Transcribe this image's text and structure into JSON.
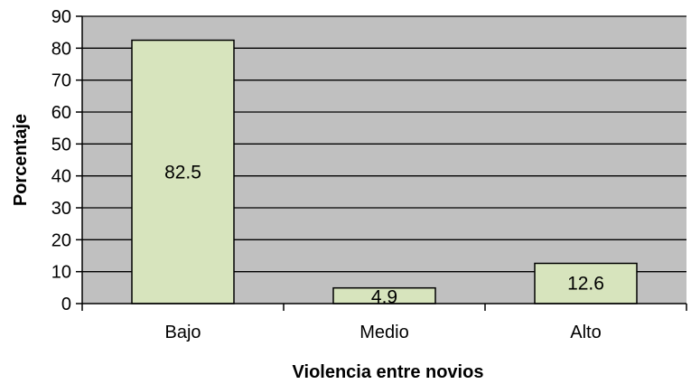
{
  "chart_data": {
    "type": "bar",
    "categories": [
      "Bajo",
      "Medio",
      "Alto"
    ],
    "values": [
      82.5,
      4.9,
      12.6
    ],
    "value_labels": [
      "82.5",
      "4.9",
      "12.6"
    ],
    "xlabel": "Violencia entre novios",
    "ylabel": "Porcentaje",
    "ylim": [
      0,
      90
    ],
    "yticks": [
      0,
      10,
      20,
      30,
      40,
      50,
      60,
      70,
      80,
      90
    ],
    "grid": true,
    "legend": "none",
    "colors": {
      "plot_background": "#c0c0c0",
      "bar_fill": "#d7e4bd",
      "bar_stroke": "#000000",
      "grid": "#000000"
    }
  }
}
